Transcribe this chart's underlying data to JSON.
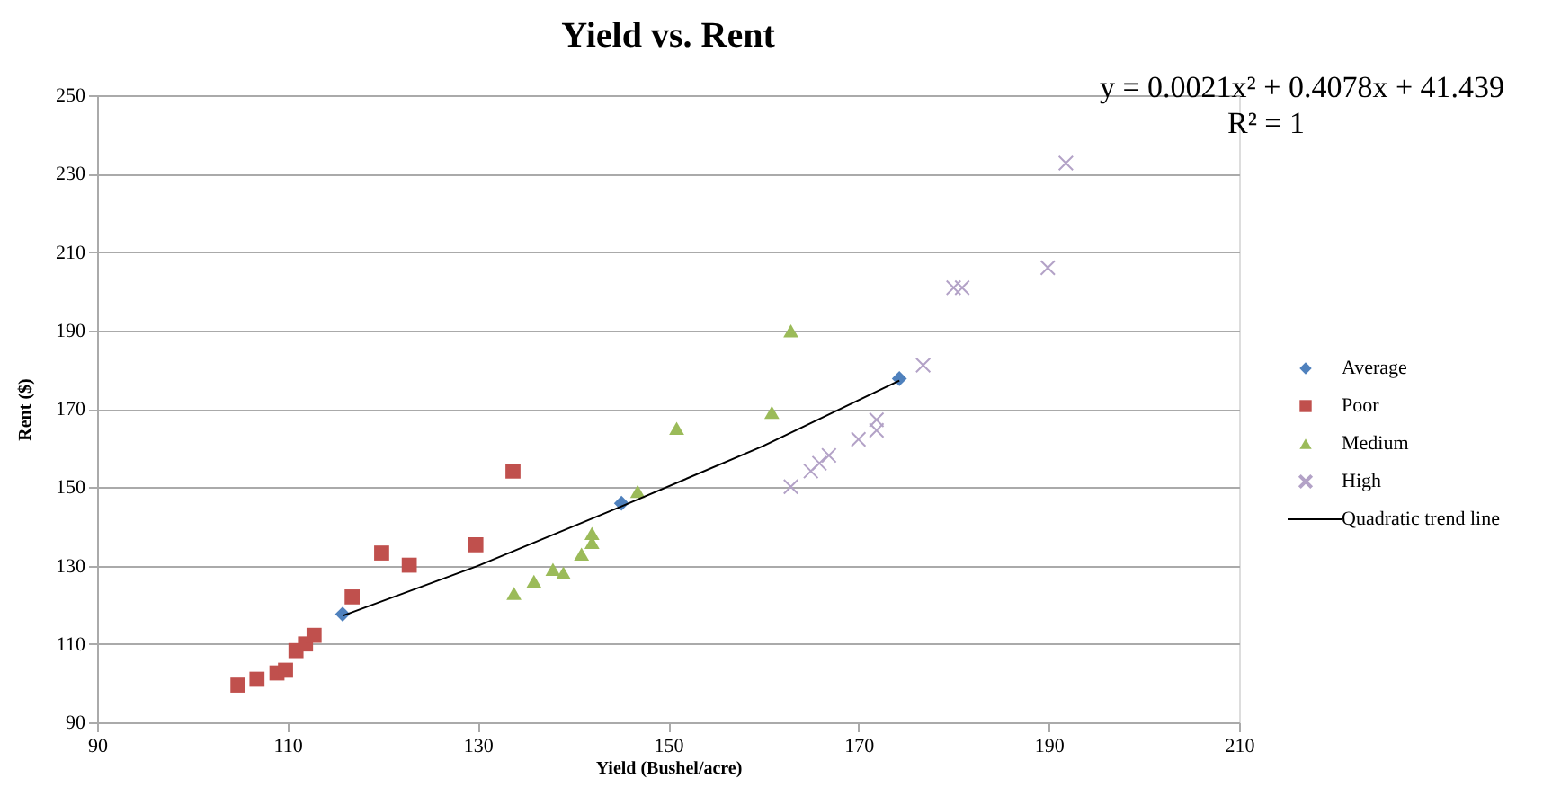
{
  "chart_data": {
    "type": "scatter",
    "title": "Yield vs. Rent",
    "xlabel": "Yield (Bushel/acre)",
    "ylabel": "Rent ($)",
    "xlim": [
      90,
      210
    ],
    "xticks": [
      90,
      110,
      130,
      150,
      170,
      190,
      210
    ],
    "ylim": [
      90,
      250
    ],
    "yticks": [
      90,
      110,
      130,
      150,
      170,
      190,
      210,
      230,
      250
    ],
    "grid": "y",
    "legend": "right",
    "annotations": [
      "y = 0.0021x² + 0.4078x + 41.439",
      "R² = 1"
    ],
    "series": [
      {
        "name": "Average",
        "color": "#4f81bd",
        "marker": "diamond",
        "x": [
          115.8,
          145.1,
          174.3
        ],
        "values": [
          117.6,
          145.9,
          177.7
        ]
      },
      {
        "name": "Poor",
        "color": "#c0504d",
        "marker": "square",
        "x": [
          104.8,
          106.8,
          108.9,
          109.8,
          110.9,
          111.9,
          112.8,
          116.8,
          119.9,
          122.8,
          129.8,
          133.7
        ],
        "values": [
          99.5,
          101,
          102.6,
          103.3,
          108.3,
          110,
          112.2,
          122,
          133.2,
          130.1,
          135.3,
          154.1
        ]
      },
      {
        "name": "Medium",
        "color": "#9bbb59",
        "marker": "triangle",
        "x": [
          133.8,
          135.9,
          137.9,
          139,
          140.9,
          142,
          142,
          146.8,
          150.9,
          160.9,
          162.9
        ],
        "values": [
          122.9,
          126,
          129,
          128.1,
          132.9,
          135.9,
          138.2,
          148.9,
          165,
          169.1,
          189.9
        ]
      },
      {
        "name": "High",
        "color": "#b3a2c7",
        "marker": "cross",
        "x": [
          162.9,
          165,
          165.9,
          166.9,
          170,
          171.9,
          171.9,
          176.8,
          180,
          180.9,
          189.9,
          191.8
        ],
        "values": [
          150.1,
          154.1,
          156.1,
          158.1,
          162.2,
          164.5,
          167.2,
          181.1,
          200.9,
          200.9,
          206,
          232.7
        ]
      },
      {
        "name": "Quadratic trend line",
        "type": "line",
        "color": "#000000",
        "marker": "none",
        "x": [
          115.8,
          130,
          145.1,
          160,
          174.3
        ],
        "values": [
          117.2,
          129.9,
          145.1,
          160.5,
          177.2
        ]
      }
    ]
  }
}
